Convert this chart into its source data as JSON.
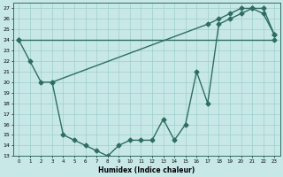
{
  "xlabel": "Humidex (Indice chaleur)",
  "xlim": [
    -0.5,
    23.5
  ],
  "ylim": [
    13,
    27.5
  ],
  "xticks": [
    0,
    1,
    2,
    3,
    4,
    5,
    6,
    7,
    8,
    9,
    10,
    11,
    12,
    13,
    14,
    15,
    16,
    17,
    18,
    19,
    20,
    21,
    22,
    23
  ],
  "yticks": [
    13,
    14,
    15,
    16,
    17,
    18,
    19,
    20,
    21,
    22,
    23,
    24,
    25,
    26,
    27
  ],
  "line_color": "#2e6e60",
  "bg_color": "#c8e8e8",
  "grid_color": "#9ecece",
  "line1_x": [
    0,
    1,
    2,
    3,
    4,
    5,
    6,
    7,
    8,
    9,
    10,
    11,
    12,
    13,
    14,
    15,
    16,
    17,
    18,
    19,
    20,
    21,
    22,
    23
  ],
  "line1_y": [
    24,
    22,
    20,
    20,
    15,
    14.5,
    14,
    13.5,
    13,
    14,
    14.5,
    14.5,
    14.5,
    16.5,
    14.5,
    16,
    21,
    18,
    25.5,
    26,
    26.5,
    27,
    27,
    24.5
  ],
  "line2_x": [
    0,
    23
  ],
  "line2_y": [
    24,
    24
  ],
  "line3_x": [
    3,
    17,
    18,
    19,
    20,
    21,
    22,
    23
  ],
  "line3_y": [
    20,
    25.5,
    26,
    26.5,
    27,
    27,
    26.5,
    24.5
  ],
  "marker": "D",
  "markersize": 2.5,
  "linewidth": 1.0
}
